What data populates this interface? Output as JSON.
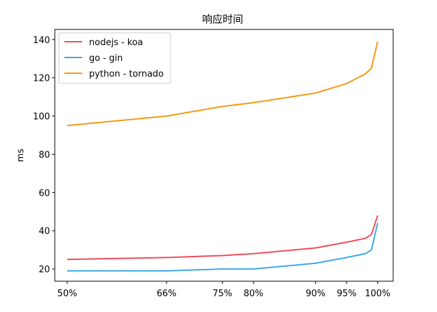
{
  "chart_data": {
    "type": "line",
    "title": "响应时间",
    "xlabel": "",
    "ylabel": "ms",
    "x": [
      50,
      66,
      75,
      80,
      90,
      95,
      98,
      99,
      100
    ],
    "x_tick_values": [
      50,
      66,
      75,
      80,
      90,
      95,
      100
    ],
    "x_tick_labels": [
      "50%",
      "66%",
      "75%",
      "80%",
      "90%",
      "95%",
      "100%"
    ],
    "y_ticks": [
      20,
      40,
      60,
      80,
      100,
      120,
      140
    ],
    "xlim": [
      48,
      102.5
    ],
    "ylim": [
      13.6,
      145.3
    ],
    "grid": false,
    "legend_position": "top-left",
    "series": [
      {
        "name": "nodejs - koa",
        "color": "#ef4a5a",
        "values": [
          25,
          26,
          27,
          28,
          31,
          34,
          36,
          38,
          48
        ]
      },
      {
        "name": "go - gin",
        "color": "#3ca7e9",
        "values": [
          19,
          19,
          20,
          20,
          23,
          26,
          28,
          30,
          44
        ]
      },
      {
        "name": "python - tornado",
        "color": "#f4980f",
        "values": [
          95,
          100,
          105,
          107,
          112,
          117,
          122,
          125,
          139
        ]
      }
    ]
  }
}
